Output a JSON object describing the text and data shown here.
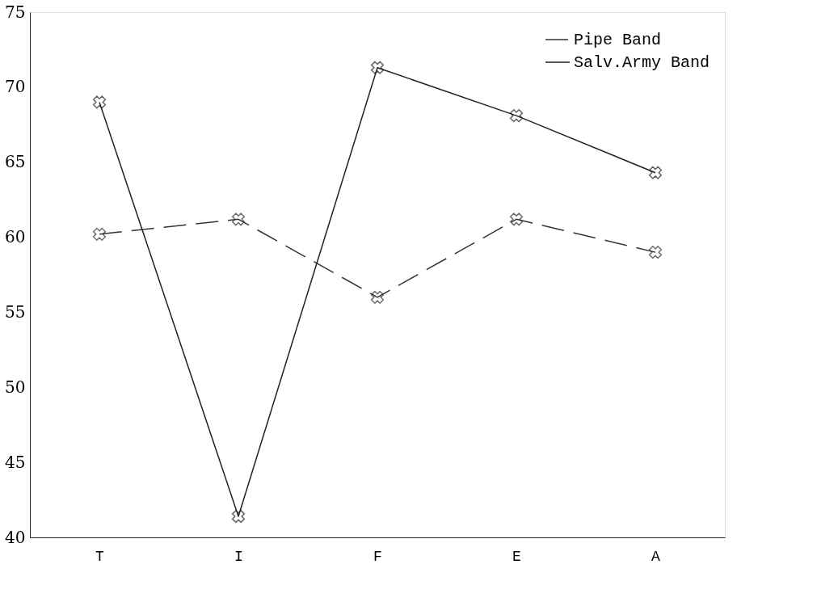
{
  "chart_data": {
    "type": "line",
    "categories": [
      "T",
      "I",
      "F",
      "E",
      "A"
    ],
    "series": [
      {
        "name": "Pipe Band",
        "color": "#333333",
        "line_style": "dashed",
        "values": [
          60.2,
          61.2,
          56.0,
          61.2,
          59.0
        ]
      },
      {
        "name": "Salv.Army Band",
        "color": "#222222",
        "line_style": "solid",
        "values": [
          69.0,
          41.4,
          71.3,
          68.1,
          64.3
        ]
      }
    ],
    "ylim": [
      40,
      75
    ],
    "yticks": [
      40,
      45,
      50,
      55,
      60,
      65,
      70,
      75
    ],
    "grid": false,
    "legend": "top right",
    "marker": "cross"
  }
}
